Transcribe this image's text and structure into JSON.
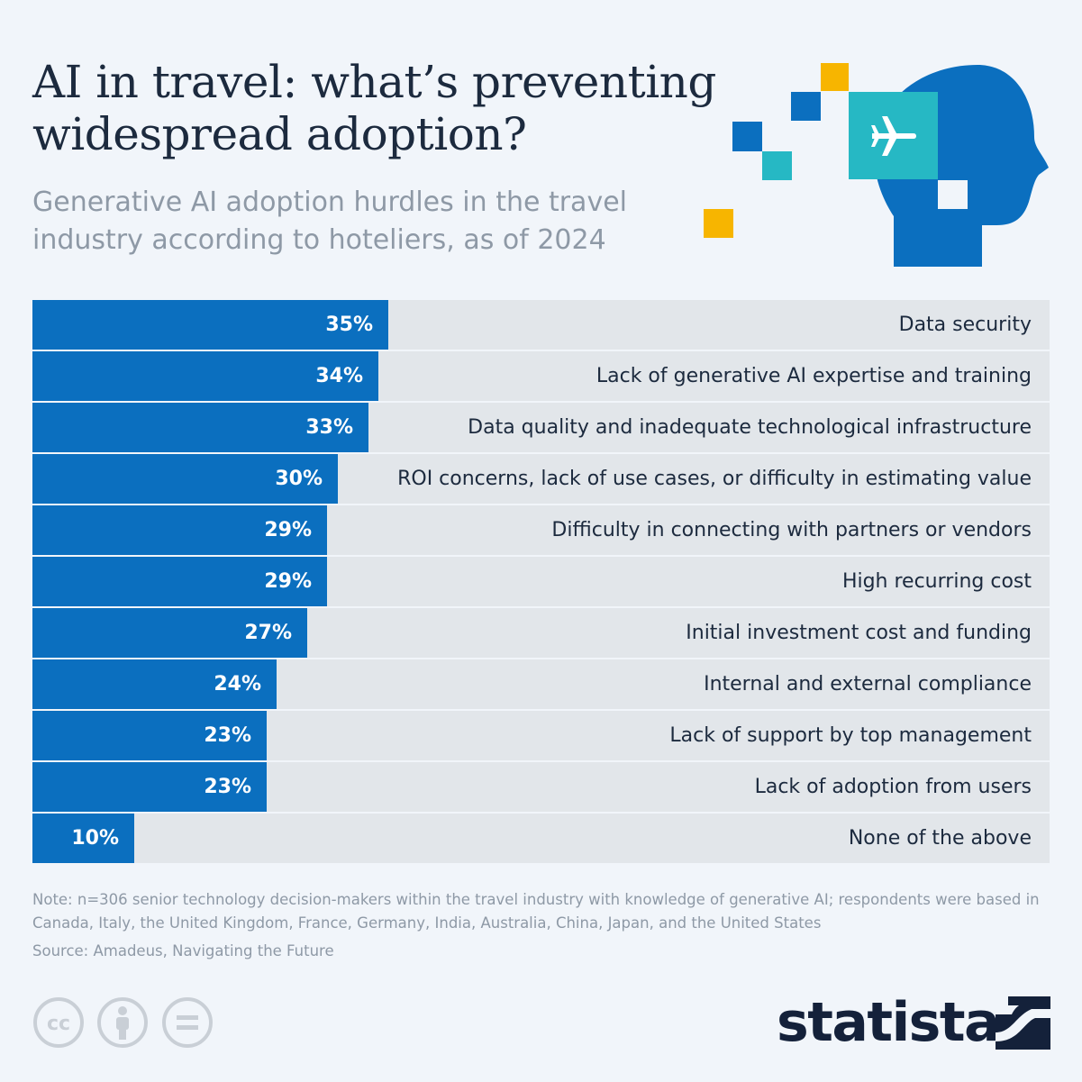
{
  "header": {
    "title": "AI in travel: what’s preventing widespread adoption?",
    "subtitle": "Generative AI adoption hurdles in the travel industry according to hoteliers, as of 2024"
  },
  "illustration": {
    "icon": "head-with-airplane-icon",
    "colors": {
      "head": "#0b6fbf",
      "screen": "#26b8c4",
      "accent": "#f7b500",
      "square": "#0b6fbf"
    }
  },
  "chart_data": {
    "type": "bar",
    "orientation": "horizontal",
    "title": "AI in travel: what’s preventing widespread adoption?",
    "subtitle": "Generative AI adoption hurdles in the travel industry according to hoteliers, as of 2024",
    "unit": "%",
    "xlim": [
      0,
      100
    ],
    "grid": false,
    "categories": [
      "Data security",
      "Lack of generative AI expertise and training",
      "Data quality and inadequate technological infrastructure",
      "ROI concerns, lack of use cases, or difficulty in estimating value",
      "Difficulty in connecting with partners or vendors",
      "High recurring cost",
      "Initial investment cost and funding",
      "Internal and external compliance",
      "Lack of support by top management",
      "Lack of adoption from users",
      "None of the above"
    ],
    "values": [
      35,
      34,
      33,
      30,
      29,
      29,
      27,
      24,
      23,
      23,
      10
    ],
    "value_labels": [
      "35%",
      "34%",
      "33%",
      "30%",
      "29%",
      "29%",
      "27%",
      "24%",
      "23%",
      "23%",
      "10%"
    ],
    "colors": {
      "bar": "#0b6fbf",
      "track": "#e2e6ea",
      "label": "#ffffff",
      "category": "#1c2a3e"
    }
  },
  "footer": {
    "note": "Note: n=306 senior technology decision-makers within the travel industry with knowledge of generative AI; respondents were based in Canada, Italy, the United Kingdom, France, Germany, India, Australia, China, Japan, and the United States",
    "source": "Source: Amadeus, Navigating the Future",
    "license_icons": [
      "cc-icon",
      "by-attribution-icon",
      "no-derivatives-icon"
    ],
    "brand": "statista"
  }
}
